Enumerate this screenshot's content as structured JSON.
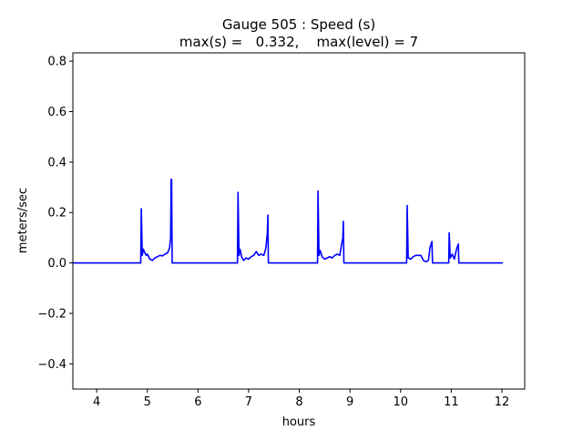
{
  "chart_data": {
    "type": "line",
    "title": "Gauge 505 : Speed (s)",
    "subtitle": "max(s) =   0.332,    max(level) = 7",
    "xlabel": "hours",
    "ylabel": "meters/sec",
    "xlim": [
      3.53,
      12.45
    ],
    "ylim": [
      -0.5,
      0.833
    ],
    "xticks": [
      4,
      5,
      6,
      7,
      8,
      9,
      10,
      11,
      12
    ],
    "xtick_labels": [
      "4",
      "5",
      "6",
      "7",
      "8",
      "9",
      "10",
      "11",
      "12"
    ],
    "yticks": [
      -0.4,
      -0.2,
      0.0,
      0.2,
      0.4,
      0.6,
      0.8
    ],
    "ytick_labels": [
      "−0.4",
      "−0.2",
      "0.0",
      "0.2",
      "0.4",
      "0.6",
      "0.8"
    ],
    "grid": false,
    "series": [
      {
        "name": "speed",
        "color": "#0000ff",
        "points": [
          [
            3.53,
            0
          ],
          [
            4.87,
            0
          ],
          [
            4.88,
            0.215
          ],
          [
            4.9,
            0.03
          ],
          [
            4.92,
            0.055
          ],
          [
            4.95,
            0.04
          ],
          [
            4.98,
            0.03
          ],
          [
            5.0,
            0.035
          ],
          [
            5.05,
            0.015
          ],
          [
            5.1,
            0.01
          ],
          [
            5.15,
            0.02
          ],
          [
            5.2,
            0.025
          ],
          [
            5.25,
            0.03
          ],
          [
            5.3,
            0.028
          ],
          [
            5.35,
            0.035
          ],
          [
            5.4,
            0.04
          ],
          [
            5.44,
            0.06
          ],
          [
            5.46,
            0.1
          ],
          [
            5.47,
            0.332
          ],
          [
            5.48,
            0.33
          ],
          [
            5.49,
            0
          ],
          [
            6.78,
            0
          ],
          [
            6.79,
            0.28
          ],
          [
            6.81,
            0.03
          ],
          [
            6.83,
            0.055
          ],
          [
            6.86,
            0.025
          ],
          [
            6.9,
            0.01
          ],
          [
            6.95,
            0.02
          ],
          [
            7.0,
            0.015
          ],
          [
            7.05,
            0.025
          ],
          [
            7.1,
            0.03
          ],
          [
            7.15,
            0.045
          ],
          [
            7.2,
            0.03
          ],
          [
            7.25,
            0.035
          ],
          [
            7.3,
            0.03
          ],
          [
            7.34,
            0.06
          ],
          [
            7.37,
            0.12
          ],
          [
            7.38,
            0.19
          ],
          [
            7.39,
            0
          ],
          [
            8.36,
            0
          ],
          [
            8.37,
            0.285
          ],
          [
            8.39,
            0.03
          ],
          [
            8.41,
            0.05
          ],
          [
            8.45,
            0.025
          ],
          [
            8.5,
            0.015
          ],
          [
            8.55,
            0.02
          ],
          [
            8.6,
            0.025
          ],
          [
            8.65,
            0.02
          ],
          [
            8.7,
            0.03
          ],
          [
            8.75,
            0.035
          ],
          [
            8.8,
            0.03
          ],
          [
            8.84,
            0.08
          ],
          [
            8.86,
            0.1
          ],
          [
            8.87,
            0.165
          ],
          [
            8.88,
            0
          ],
          [
            10.12,
            0
          ],
          [
            10.13,
            0.228
          ],
          [
            10.15,
            0.02
          ],
          [
            10.2,
            0.015
          ],
          [
            10.25,
            0.025
          ],
          [
            10.3,
            0.03
          ],
          [
            10.35,
            0.03
          ],
          [
            10.4,
            0.03
          ],
          [
            10.45,
            0.01
          ],
          [
            10.5,
            0.005
          ],
          [
            10.55,
            0.01
          ],
          [
            10.58,
            0.06
          ],
          [
            10.61,
            0.08
          ],
          [
            10.62,
            0.085
          ],
          [
            10.63,
            0
          ],
          [
            10.95,
            0
          ],
          [
            10.96,
            0.12
          ],
          [
            10.98,
            0.02
          ],
          [
            11.02,
            0.035
          ],
          [
            11.06,
            0.015
          ],
          [
            11.1,
            0.05
          ],
          [
            11.13,
            0.07
          ],
          [
            11.14,
            0.075
          ],
          [
            11.15,
            0
          ],
          [
            12.02,
            0
          ]
        ]
      }
    ]
  }
}
